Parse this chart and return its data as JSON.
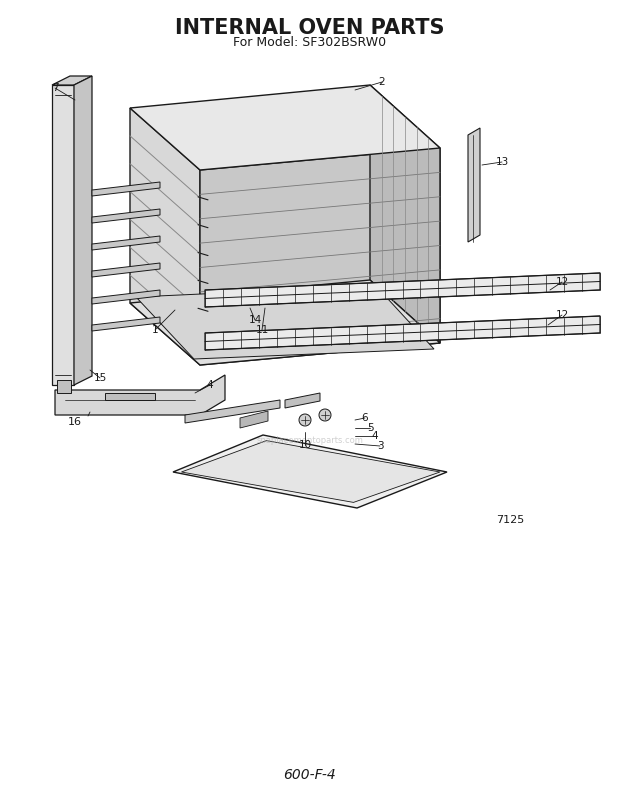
{
  "title": "INTERNAL OVEN PARTS",
  "subtitle": "For Model: SF302BSRW0",
  "footer": "600-F-4",
  "diagram_id": "7125",
  "bg_color": "#ffffff",
  "line_color": "#1a1a1a",
  "title_fontsize": 15,
  "subtitle_fontsize": 9,
  "footer_fontsize": 10,
  "watermark": "snaplacementoparts.com"
}
